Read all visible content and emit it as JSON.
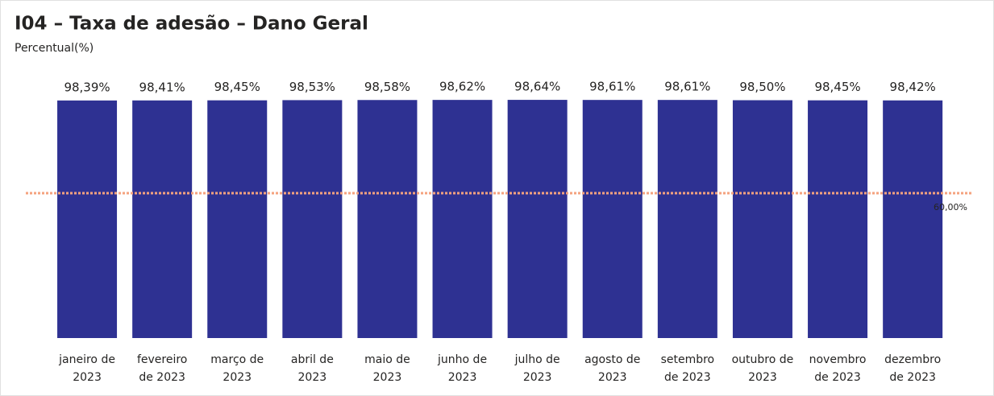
{
  "chart_data": {
    "type": "bar",
    "title": "I04 – Taxa de adesão – Dano Geral",
    "subtitle": "Percentual(%)",
    "categories": [
      [
        "janeiro de",
        "2023"
      ],
      [
        "fevereiro",
        "de 2023"
      ],
      [
        "março de",
        "2023"
      ],
      [
        "abril de",
        "2023"
      ],
      [
        "maio de",
        "2023"
      ],
      [
        "junho de",
        "2023"
      ],
      [
        "julho de",
        "2023"
      ],
      [
        "agosto de",
        "2023"
      ],
      [
        "setembro",
        "de 2023"
      ],
      [
        "outubro de",
        "2023"
      ],
      [
        "novembro",
        "de 2023"
      ],
      [
        "dezembro",
        "de 2023"
      ]
    ],
    "values": [
      98.39,
      98.41,
      98.45,
      98.53,
      98.58,
      98.62,
      98.64,
      98.61,
      98.61,
      98.5,
      98.45,
      98.42
    ],
    "value_labels": [
      "98,39%",
      "98,41%",
      "98,45%",
      "98,53%",
      "98,58%",
      "98,62%",
      "98,64%",
      "98,61%",
      "98,61%",
      "98,50%",
      "98,45%",
      "98,42%"
    ],
    "color": "#2e3192",
    "ylim": [
      0,
      100
    ],
    "reference_line": {
      "value": 60,
      "label": "60,00%",
      "color": "#f4a27e"
    }
  }
}
